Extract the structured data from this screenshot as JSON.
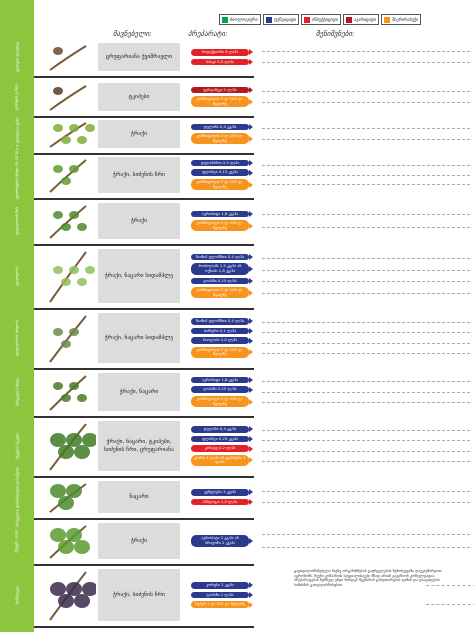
{
  "legend": [
    {
      "label": "ბიოლოგიური",
      "color": "#00a651"
    },
    {
      "label": "ფუნგიციდი",
      "color": "#2b3a8f"
    },
    {
      "label": "ინსექტიციდი",
      "color": "#e32128"
    },
    {
      "label": "აკარიციდი",
      "color": "#b1191f"
    },
    {
      "label": "მიკროსასუქი",
      "color": "#f7941d"
    }
  ],
  "headers": {
    "target": "მავნებელი:",
    "prep": "პრეპარატი:",
    "notes": "შენიშვნები:"
  },
  "colors": {
    "side": "#8cc63f",
    "fungicide": "#2b3a8f",
    "microfertilizer": "#f7941d",
    "insecticide": "#e32128",
    "acaricide": "#b1191f",
    "biological": "#00a651"
  },
  "stages": [
    {
      "stage": "კვირტის დაბერვა",
      "target": "ცრუფარიანა ქვიშრავლი",
      "preps": [
        {
          "label": "ნოვაქტიონი 6 ლ/ჰა",
          "type": "red"
        },
        {
          "label": "სპიკი 0,5 ლ/ჰა",
          "type": "red"
        }
      ]
    },
    {
      "stage": "კვირტის გაშლა",
      "target": "ტკიპები",
      "preps": [
        {
          "label": "ვერტიმეკი 1 ლ/ჰა",
          "type": "dred"
        },
        {
          "label": "კომბიფოლი 3 ლ 100 ლ. წყალზე",
          "type": "orange"
        }
      ]
    },
    {
      "stage": "2-3 ფოთლის ფაზა",
      "target": "ჭრაქი",
      "preps": [
        {
          "label": "დელანი 0,4 კგ/ჰა",
          "type": "blue"
        },
        {
          "label": "კომბიფოლი 3 ლ 100 ლ. წყალზე",
          "type": "orange"
        }
      ]
    },
    {
      "stage": "ყლორტების ზრდა 15-20 სმ",
      "target": "ჭრაქი, სიძენის ჩრი",
      "preps": [
        {
          "label": "დელანპრო 2,5 ლ/ჰა",
          "type": "blue"
        },
        {
          "label": "ფლინტი 0,15 კგ/ჰა",
          "type": "blue"
        },
        {
          "label": "კომბიფოლი 3 ლ 100 ლ. წყალზე",
          "type": "orange"
        }
      ]
    },
    {
      "stage": "ყვავილობის წინ",
      "target": "ჭრაქი",
      "preps": [
        {
          "label": "აკრობატი 1,8 კგ/ჰა",
          "type": "blue"
        },
        {
          "label": "კომბიფოლი 3 ლ 100 ლ. წყალზე",
          "type": "orange"
        }
      ]
    },
    {
      "stage": "ყვავილობა",
      "target": "ჭრაქი, ნაცარი სიდამპლე",
      "preps": [
        {
          "label": "ჩაიზიჰ ფლიმმთი 0,4 ლ/ჰა",
          "type": "blue"
        },
        {
          "label": "რიძოლიპს 1,5 კგ/ჰა ან ოქსიჰი 1,8 კგ/ჰა",
          "type": "blue"
        },
        {
          "label": "ტოპაზი 0,25 ლ/ჰა",
          "type": "blue"
        },
        {
          "label": "კომბიფოლი 3 ლ 100 ლ. წყალზე",
          "type": "orange"
        }
      ]
    },
    {
      "stage": "ყვავილობის ბოლოს",
      "target": "ჭრაქი, ნაცარი სიდამპლე",
      "preps": [
        {
          "label": "ჩაიზიჰ ფლიმმთი 0,4 ლ/ჰა",
          "type": "blue"
        },
        {
          "label": "სიმსერი 0,1 ლ/ჰა",
          "type": "blue"
        },
        {
          "label": "სიოლიპი 2,0 ლ/ჰა",
          "type": "blue"
        },
        {
          "label": "კომბიფოლი 3 ლ 100 ლ. წყალზე",
          "type": "orange"
        }
      ]
    },
    {
      "stage": "მარცვლის ზრდა",
      "target": "ჭრაქი, ნაცარი",
      "preps": [
        {
          "label": "აკრობატი 1,8 კგ/ჰა",
          "type": "blue"
        },
        {
          "label": "ტოპაზი 0,25 ლ/ჰა",
          "type": "blue"
        },
        {
          "label": "კომბიფოლი 3 ლ 100 ლ. წყალზე",
          "type": "orange"
        }
      ]
    },
    {
      "stage": "მტევნის შეკვრა",
      "target": "ჭრაქი, ნაცარი, ტკიპები, სიძენის ჩრი, ცრუფარიანა",
      "preps": [
        {
          "label": "დელანი 0,4 კგ/ჰა",
          "type": "blue"
        },
        {
          "label": "ფლინტი 0,25 კგ/ჰა",
          "type": "blue"
        },
        {
          "label": "კარატე 0,2 ლ/ჰა",
          "type": "red"
        },
        {
          "label": "კომბი 2 ლ/ჰა ან ფერმერი 1 ლ/ჰა",
          "type": "orange"
        }
      ]
    },
    {
      "stage": "მარცვლის დარბილების დასაწყისი",
      "target": "ნაცარი",
      "preps": [
        {
          "label": "კუმულუსი 3 კგ/ჰა",
          "type": "blue"
        },
        {
          "label": "ამპლიგო 1,5 ლ/ჰა",
          "type": "red"
        }
      ]
    },
    {
      "stage": "შეფერ- ვისას",
      "target": "ჭრაქი",
      "preps": [
        {
          "label": "აკრობატი 2 კგ/ჰა ან ბრავოზი 2 კგ/ჰა",
          "type": "blue"
        }
      ]
    },
    {
      "stage": "მომწიფება",
      "target": "ჭრაქი, სიძენის ჩრი",
      "preps": [
        {
          "label": "კორუსი 2 კგ/ჰა",
          "type": "blue"
        },
        {
          "label": "ტოპაზი 1 ლ/ჰა",
          "type": "blue"
        },
        {
          "label": "სუპერ 2 ლ 100 ლ. წყალზე",
          "type": "orange"
        }
      ]
    }
  ],
  "footnote": "გაუთვალისწინებელი მავნე ორგანიზმების გავრცელების შემთხვევაში დაუკავშირდით აგრონომს. ჩვენი კომპანიის სპეციალისტები მზად არიან გაგიწიონ კონსულტაცია. პრეპარატების შერჩევა უნდა მოხდეს მცენარის განვითარების ფაზის და დაავადების სიმძიმის გათვალისწინებით."
}
